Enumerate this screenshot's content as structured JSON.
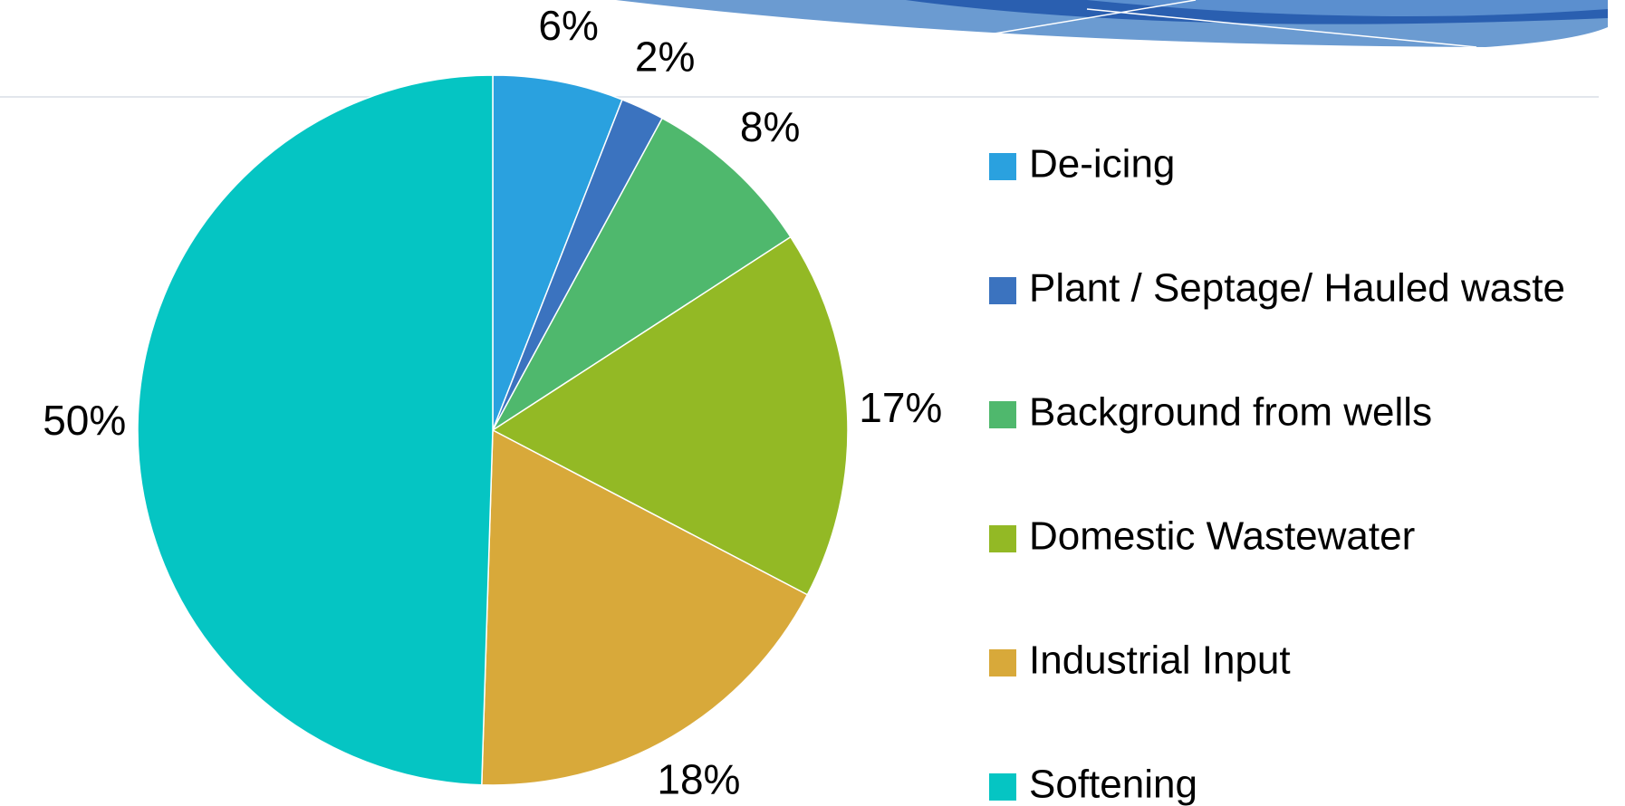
{
  "chart_data": {
    "type": "pie",
    "categories": [
      "De-icing",
      "Plant / Septage/ Hauled waste",
      "Background from wells",
      "Domestic Wastewater",
      "Industrial Input",
      "Softening"
    ],
    "values": [
      6,
      2,
      8,
      17,
      18,
      50
    ],
    "colors": [
      "#2aa1df",
      "#3b73bf",
      "#4fb86d",
      "#93b925",
      "#d8a93a",
      "#05c5c3"
    ],
    "value_labels": [
      "6%",
      "2%",
      "8%",
      "17%",
      "18%",
      "50%"
    ],
    "legend": "right"
  }
}
